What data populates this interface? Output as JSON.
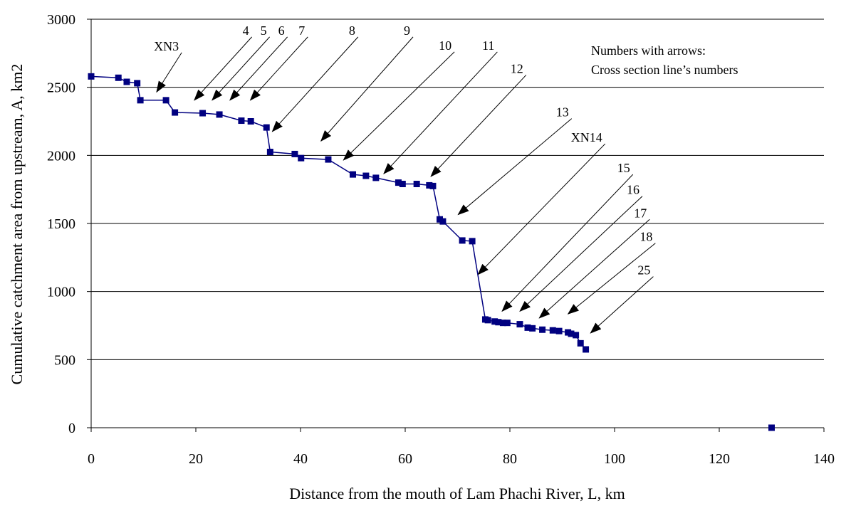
{
  "chart_data": {
    "type": "line",
    "xlabel": "Distance from the mouth of Lam Phachi River, L, km",
    "ylabel": "Cumulative catchment area from upstream, A, km2",
    "xlim": [
      0,
      140
    ],
    "ylim": [
      0,
      3000
    ],
    "xticks": [
      0,
      20,
      40,
      60,
      80,
      100,
      120,
      140
    ],
    "yticks": [
      0,
      500,
      1000,
      1500,
      2000,
      2500,
      3000
    ],
    "grid": "horizontal",
    "note": [
      "Numbers with arrows:",
      "Cross section line’s numbers"
    ],
    "series": [
      {
        "color": "#000080",
        "x": [
          0,
          5.2,
          6.8,
          8.8,
          9.4,
          14.3,
          16.0,
          21.3,
          24.5,
          28.7,
          30.5,
          33.5,
          34.2,
          38.9,
          40.1,
          45.3,
          50.0,
          52.5,
          54.4,
          58.7,
          59.5,
          62.2,
          64.6,
          65.3,
          66.6,
          67.2,
          70.9,
          72.8,
          75.3,
          75.8,
          77.1,
          77.8,
          78.7,
          79.5,
          81.9,
          83.4,
          84.3,
          86.2,
          88.2,
          89.4,
          91.1,
          91.7,
          92.6,
          93.5,
          94.5,
          130.0
        ],
        "y": [
          2580,
          2570,
          2540,
          2530,
          2405,
          2405,
          2315,
          2310,
          2300,
          2255,
          2250,
          2205,
          2025,
          2010,
          1980,
          1970,
          1860,
          1850,
          1835,
          1800,
          1790,
          1790,
          1780,
          1775,
          1530,
          1515,
          1375,
          1370,
          795,
          790,
          780,
          775,
          770,
          770,
          760,
          735,
          730,
          720,
          715,
          710,
          700,
          690,
          680,
          620,
          575,
          0
        ]
      }
    ],
    "annotations": [
      {
        "text": "XN3",
        "from": [
          17.3,
          2755
        ],
        "to": [
          12.5,
          2465
        ]
      },
      {
        "text": "4",
        "from": [
          30.7,
          2870
        ],
        "to": [
          19.7,
          2405
        ]
      },
      {
        "text": "5",
        "from": [
          34.1,
          2870
        ],
        "to": [
          23.1,
          2405
        ]
      },
      {
        "text": "6",
        "from": [
          37.5,
          2870
        ],
        "to": [
          26.5,
          2405
        ]
      },
      {
        "text": "7",
        "from": [
          41.4,
          2870
        ],
        "to": [
          30.4,
          2405
        ]
      },
      {
        "text": "8",
        "from": [
          51.0,
          2870
        ],
        "to": [
          34.6,
          2175
        ]
      },
      {
        "text": "9",
        "from": [
          61.5,
          2870
        ],
        "to": [
          43.9,
          2105
        ]
      },
      {
        "text": "10",
        "from": [
          69.4,
          2760
        ],
        "to": [
          48.2,
          1965
        ]
      },
      {
        "text": "11",
        "from": [
          77.6,
          2760
        ],
        "to": [
          55.9,
          1865
        ]
      },
      {
        "text": "12",
        "from": [
          83.1,
          2590
        ],
        "to": [
          64.9,
          1845
        ]
      },
      {
        "text": "13",
        "from": [
          91.8,
          2270
        ],
        "to": [
          70.1,
          1565
        ]
      },
      {
        "text": "XN14",
        "from": [
          98.2,
          2085
        ],
        "to": [
          73.9,
          1125
        ]
      },
      {
        "text": "15",
        "from": [
          103.5,
          1860
        ],
        "to": [
          78.5,
          855
        ]
      },
      {
        "text": "16",
        "from": [
          105.3,
          1700
        ],
        "to": [
          81.9,
          855
        ]
      },
      {
        "text": "17",
        "from": [
          106.7,
          1530
        ],
        "to": [
          85.6,
          805
        ]
      },
      {
        "text": "18",
        "from": [
          107.8,
          1355
        ],
        "to": [
          91.1,
          835
        ]
      },
      {
        "text": "25",
        "from": [
          107.4,
          1110
        ],
        "to": [
          95.4,
          695
        ]
      }
    ]
  }
}
